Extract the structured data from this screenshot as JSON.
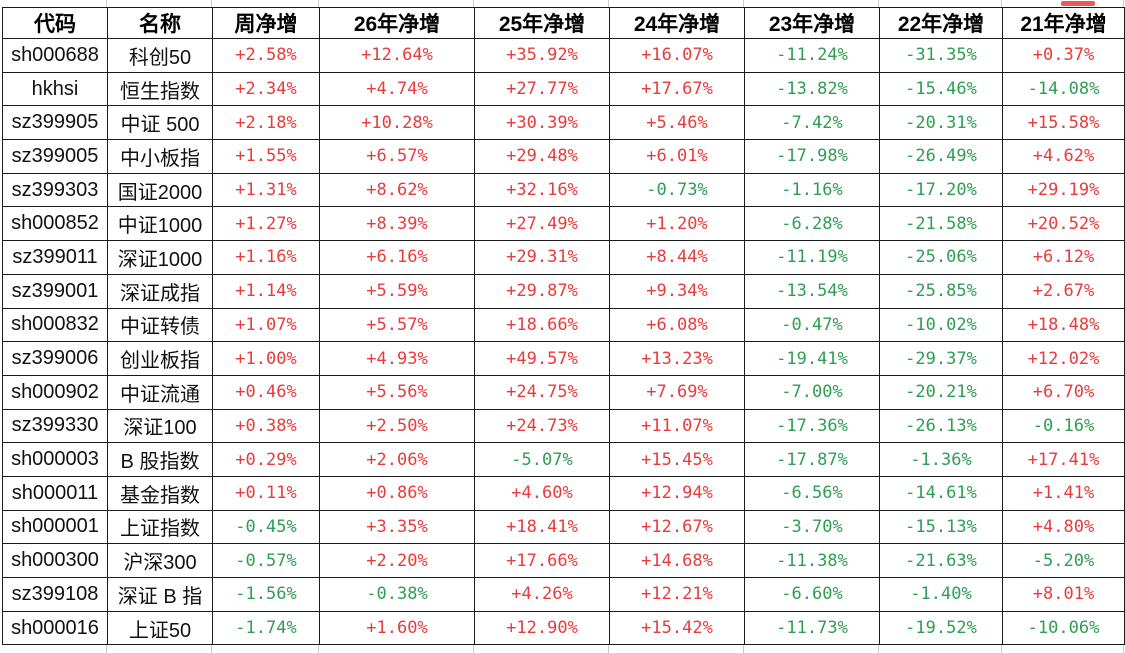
{
  "colors": {
    "positive": "#e83b3b",
    "negative": "#2e9e52",
    "header_text": "#000000",
    "grid_border": "#1b1b1b",
    "outer_gridline": "#c3cbd2"
  },
  "table": {
    "columns": [
      "代码",
      "名称",
      "周净增",
      "26年净增",
      "25年净增",
      "24年净增",
      "23年净增",
      "22年净增",
      "21年净增"
    ],
    "rows": [
      {
        "code": "sh000688",
        "name": "科创50",
        "values": [
          "+2.58%",
          "+12.64%",
          "+35.92%",
          "+16.07%",
          "-11.24%",
          "-31.35%",
          "+0.37%"
        ]
      },
      {
        "code": "hkhsi",
        "name": "恒生指数",
        "values": [
          "+2.34%",
          "+4.74%",
          "+27.77%",
          "+17.67%",
          "-13.82%",
          "-15.46%",
          "-14.08%"
        ]
      },
      {
        "code": "sz399905",
        "name": "中证 500",
        "values": [
          "+2.18%",
          "+10.28%",
          "+30.39%",
          "+5.46%",
          "-7.42%",
          "-20.31%",
          "+15.58%"
        ]
      },
      {
        "code": "sz399005",
        "name": "中小板指",
        "values": [
          "+1.55%",
          "+6.57%",
          "+29.48%",
          "+6.01%",
          "-17.98%",
          "-26.49%",
          "+4.62%"
        ]
      },
      {
        "code": "sz399303",
        "name": "国证2000",
        "values": [
          "+1.31%",
          "+8.62%",
          "+32.16%",
          "-0.73%",
          "-1.16%",
          "-17.20%",
          "+29.19%"
        ]
      },
      {
        "code": "sh000852",
        "name": "中证1000",
        "values": [
          "+1.27%",
          "+8.39%",
          "+27.49%",
          "+1.20%",
          "-6.28%",
          "-21.58%",
          "+20.52%"
        ]
      },
      {
        "code": "sz399011",
        "name": "深证1000",
        "values": [
          "+1.16%",
          "+6.16%",
          "+29.31%",
          "+8.44%",
          "-11.19%",
          "-25.06%",
          "+6.12%"
        ]
      },
      {
        "code": "sz399001",
        "name": "深证成指",
        "values": [
          "+1.14%",
          "+5.59%",
          "+29.87%",
          "+9.34%",
          "-13.54%",
          "-25.85%",
          "+2.67%"
        ]
      },
      {
        "code": "sh000832",
        "name": "中证转债",
        "values": [
          "+1.07%",
          "+5.57%",
          "+18.66%",
          "+6.08%",
          "-0.47%",
          "-10.02%",
          "+18.48%"
        ]
      },
      {
        "code": "sz399006",
        "name": "创业板指",
        "values": [
          "+1.00%",
          "+4.93%",
          "+49.57%",
          "+13.23%",
          "-19.41%",
          "-29.37%",
          "+12.02%"
        ]
      },
      {
        "code": "sh000902",
        "name": "中证流通",
        "values": [
          "+0.46%",
          "+5.56%",
          "+24.75%",
          "+7.69%",
          "-7.00%",
          "-20.21%",
          "+6.70%"
        ]
      },
      {
        "code": "sz399330",
        "name": "深证100",
        "values": [
          "+0.38%",
          "+2.50%",
          "+24.73%",
          "+11.07%",
          "-17.36%",
          "-26.13%",
          "-0.16%"
        ]
      },
      {
        "code": "sh000003",
        "name": "B 股指数",
        "values": [
          "+0.29%",
          "+2.06%",
          "-5.07%",
          "+15.45%",
          "-17.87%",
          "-1.36%",
          "+17.41%"
        ]
      },
      {
        "code": "sh000011",
        "name": "基金指数",
        "values": [
          "+0.11%",
          "+0.86%",
          "+4.60%",
          "+12.94%",
          "-6.56%",
          "-14.61%",
          "+1.41%"
        ]
      },
      {
        "code": "sh000001",
        "name": "上证指数",
        "values": [
          "-0.45%",
          "+3.35%",
          "+18.41%",
          "+12.67%",
          "-3.70%",
          "-15.13%",
          "+4.80%"
        ]
      },
      {
        "code": "sh000300",
        "name": "沪深300",
        "values": [
          "-0.57%",
          "+2.20%",
          "+17.66%",
          "+14.68%",
          "-11.38%",
          "-21.63%",
          "-5.20%"
        ]
      },
      {
        "code": "sz399108",
        "name": "深证 B 指",
        "values": [
          "-1.56%",
          "-0.38%",
          "+4.26%",
          "+12.21%",
          "-6.60%",
          "-1.40%",
          "+8.01%"
        ]
      },
      {
        "code": "sh000016",
        "name": "上证50",
        "values": [
          "-1.74%",
          "+1.60%",
          "+12.90%",
          "+15.42%",
          "-11.73%",
          "-19.52%",
          "-10.06%"
        ]
      }
    ]
  }
}
